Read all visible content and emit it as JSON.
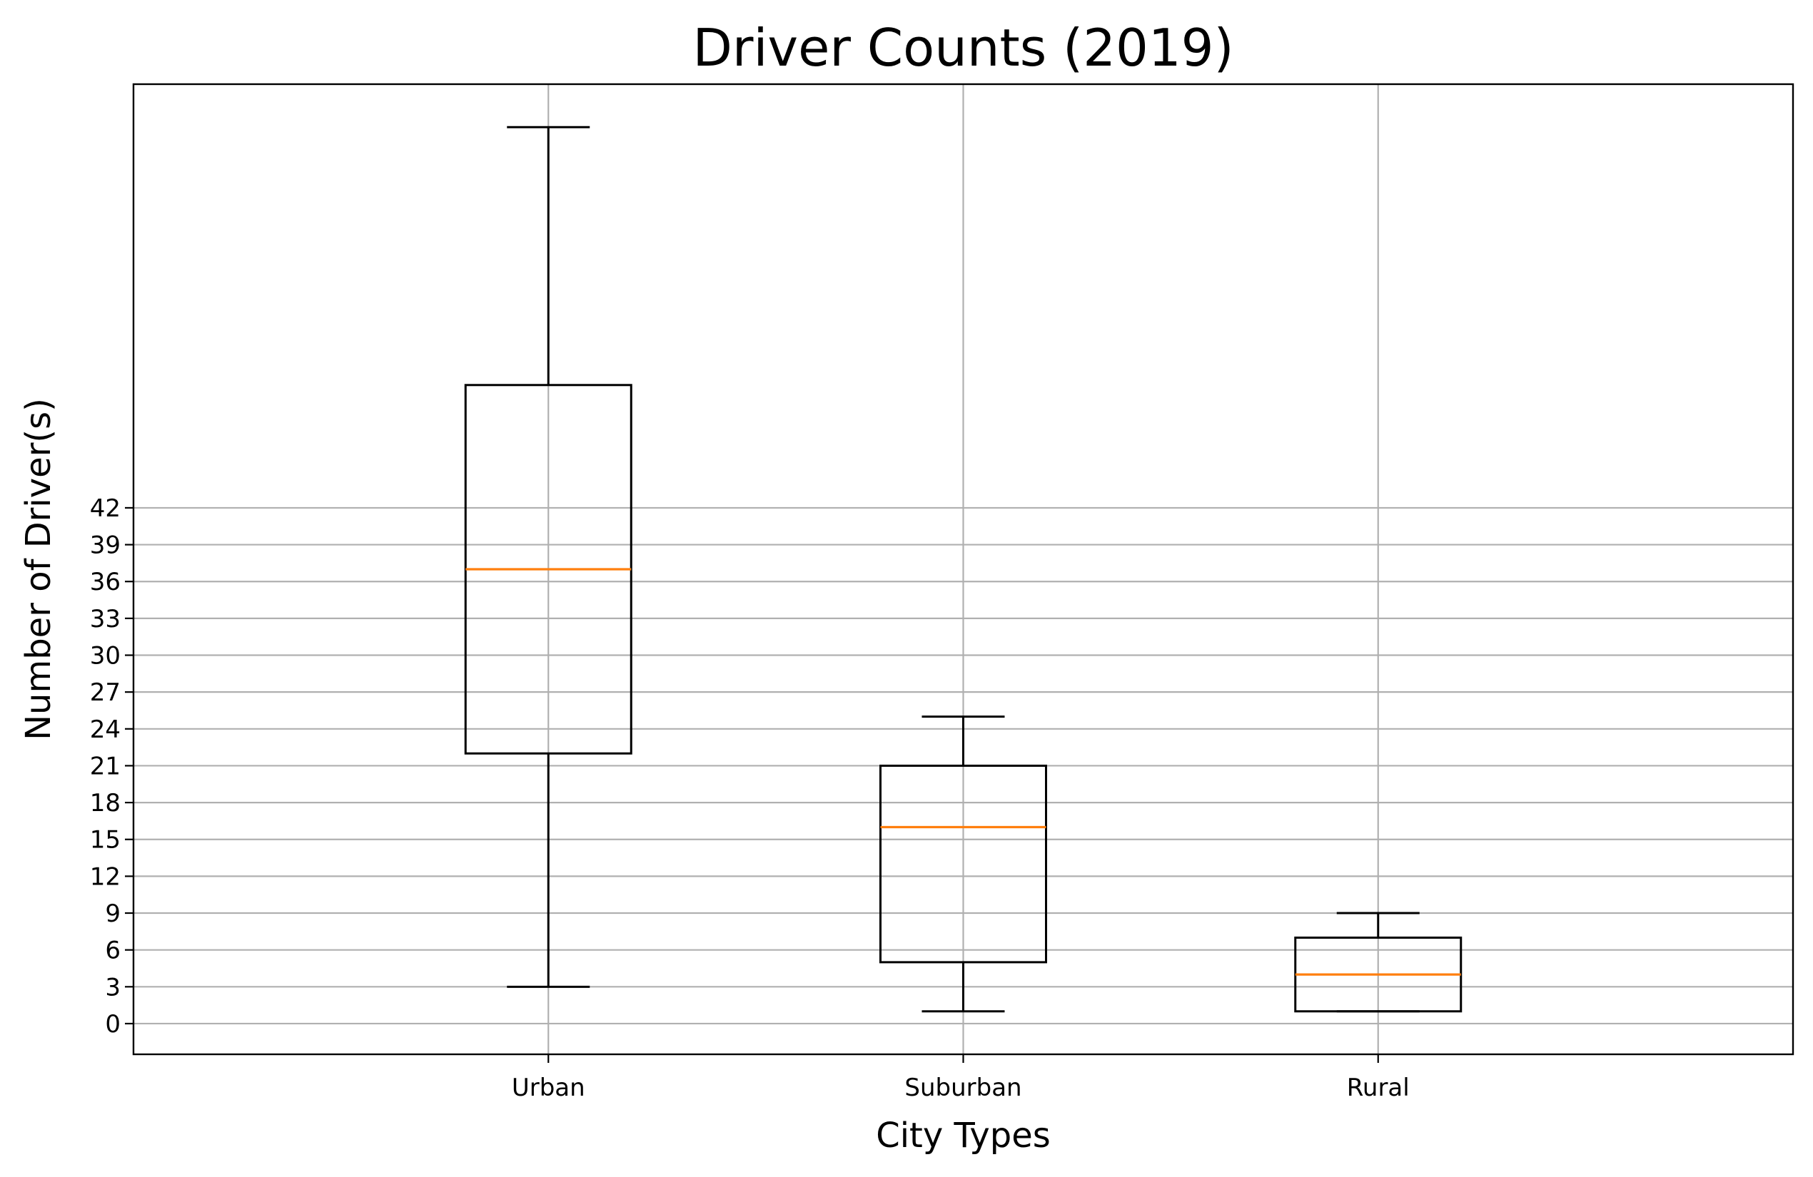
{
  "chart_data": {
    "type": "box",
    "title": "Driver Counts (2019)",
    "xlabel": "City Types",
    "ylabel": "Number of Driver(s)",
    "categories": [
      "Urban",
      "Suburban",
      "Rural"
    ],
    "boxes": [
      {
        "category": "Urban",
        "min": 3,
        "q1": 22,
        "median": 37,
        "q3": 52,
        "max": 73
      },
      {
        "category": "Suburban",
        "min": 1,
        "q1": 5,
        "median": 16,
        "q3": 21,
        "max": 25
      },
      {
        "category": "Rural",
        "min": 1,
        "q1": 1,
        "median": 4,
        "q3": 7,
        "max": 9
      }
    ],
    "yticks": [
      "0",
      "3",
      "6",
      "9",
      "12",
      "15",
      "18",
      "21",
      "24",
      "27",
      "30",
      "33",
      "36",
      "39",
      "42"
    ],
    "ylim": [
      -2.5,
      76.5
    ],
    "grid": true,
    "colors": {
      "box": "#000000",
      "median": "#ff7f0e",
      "grid": "#b0b0b0"
    }
  }
}
